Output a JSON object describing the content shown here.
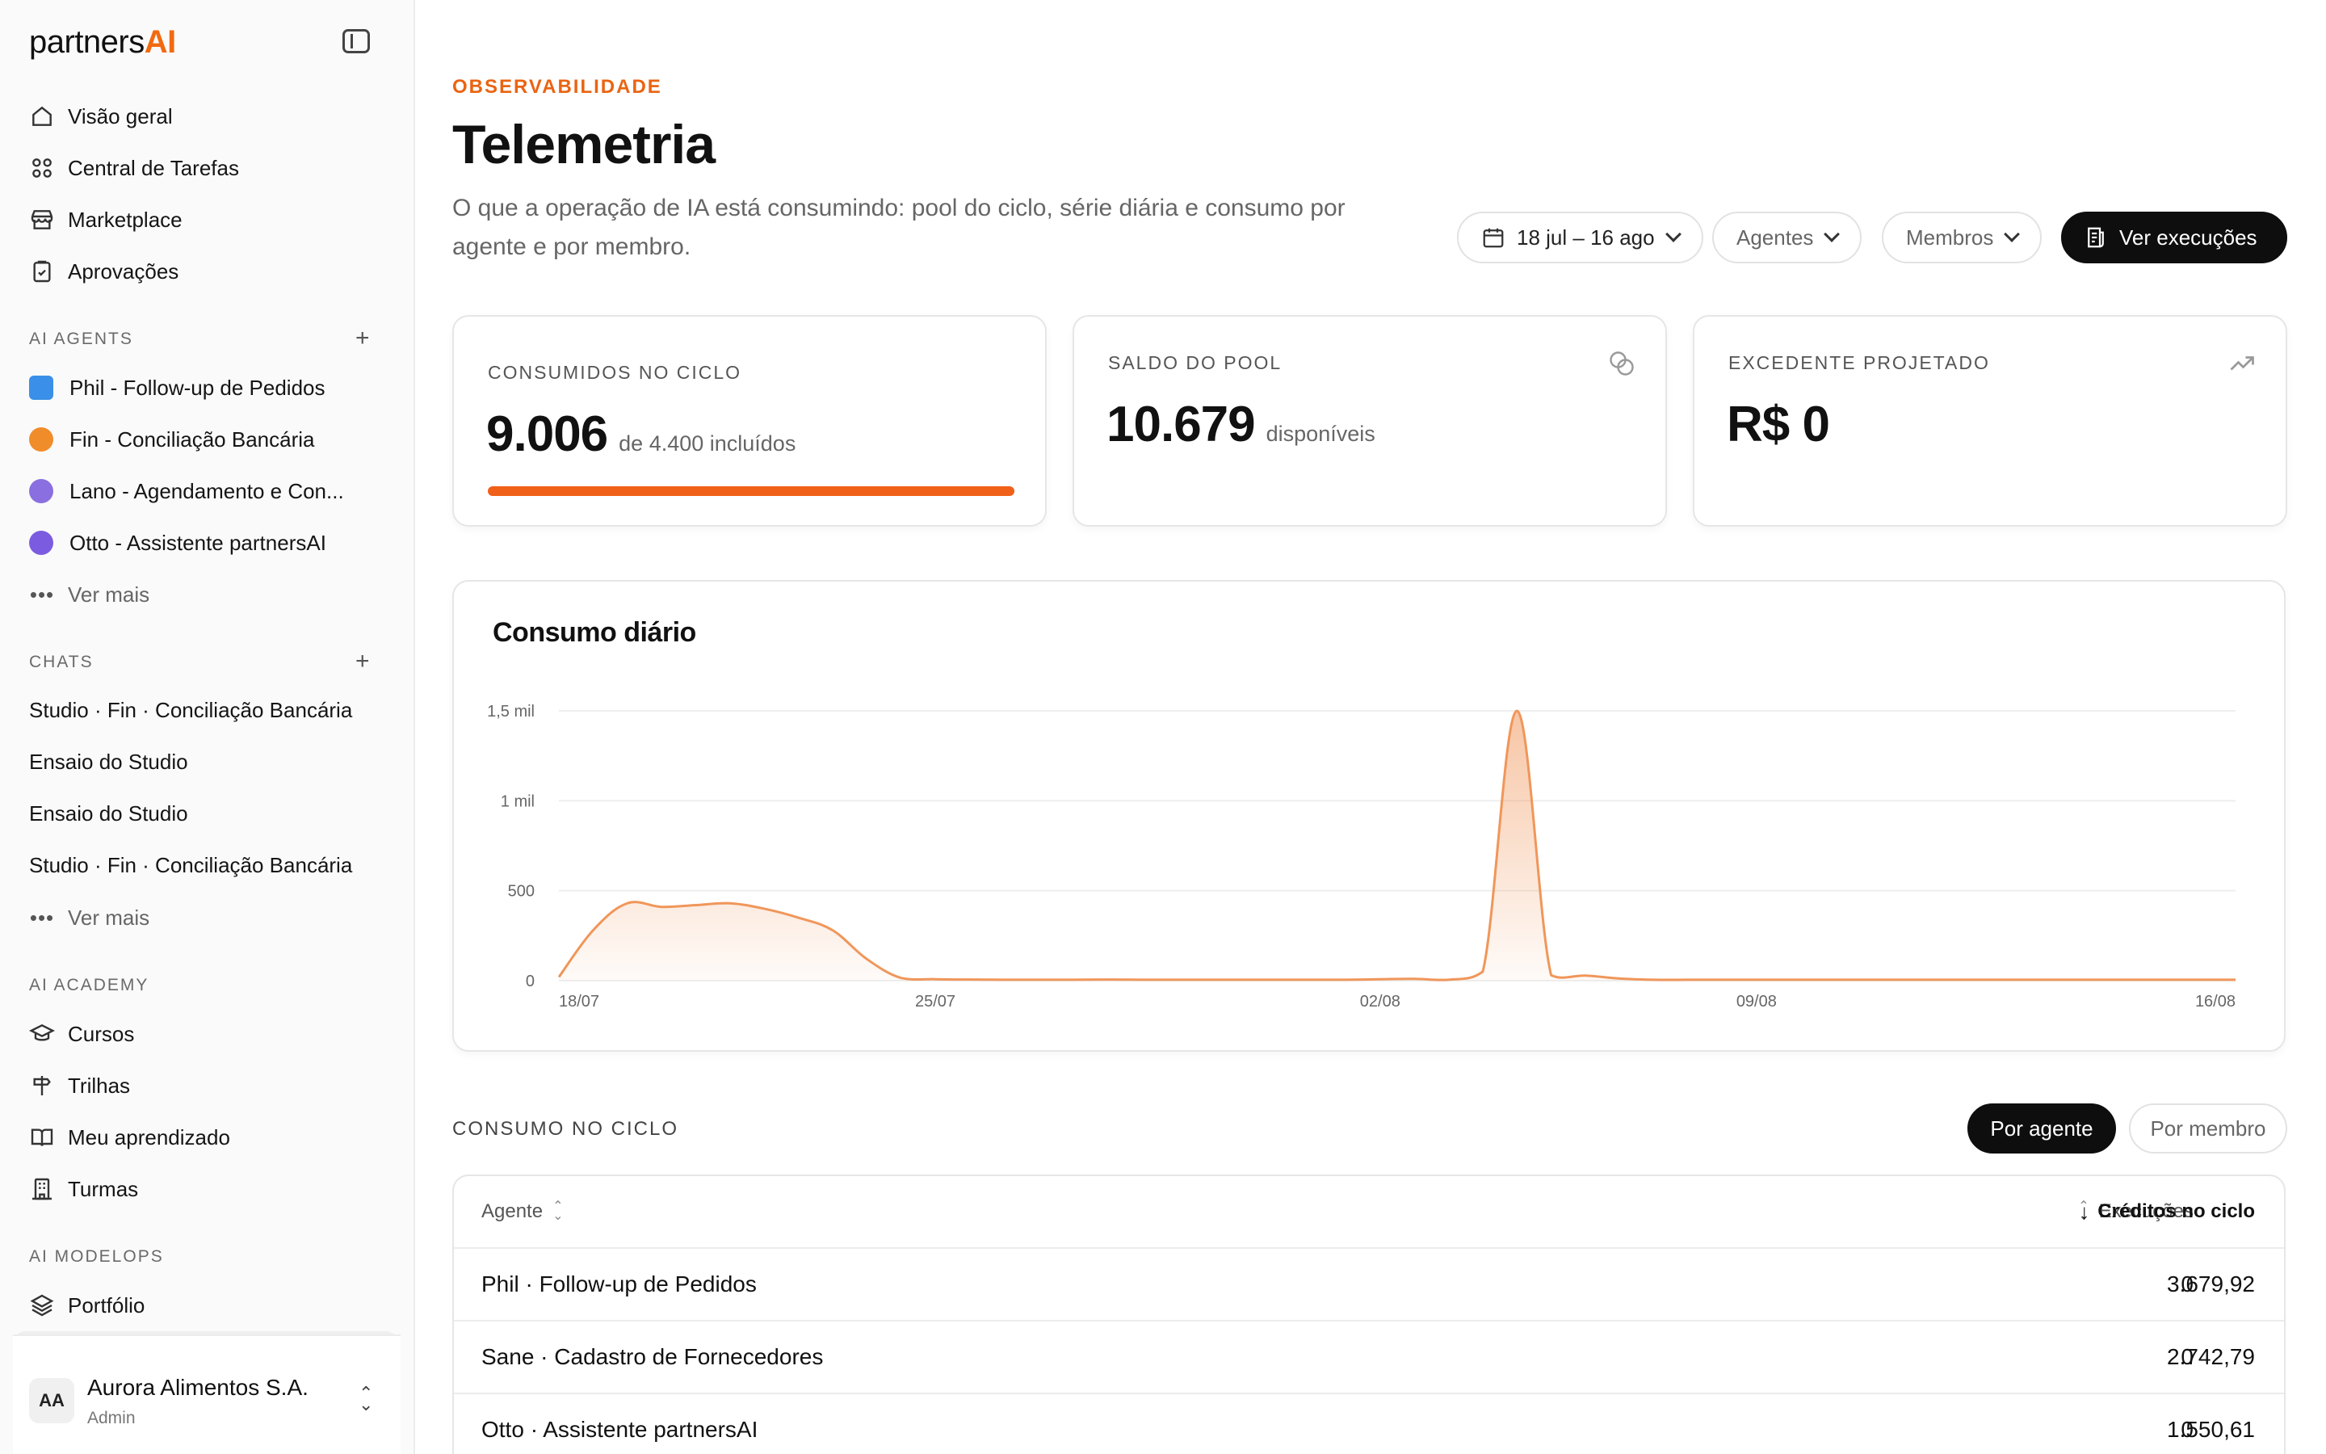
{
  "brand": {
    "name_prefix": "partners",
    "name_suffix": "AI"
  },
  "colors": {
    "accent": "#f26a10",
    "primary_dark": "#0e0e0e",
    "chart_line": "#f0965a"
  },
  "sidebar": {
    "main_nav": [
      {
        "label": "Visão geral",
        "icon": "home-icon"
      },
      {
        "label": "Central de Tarefas",
        "icon": "grid-icon"
      },
      {
        "label": "Marketplace",
        "icon": "store-icon"
      },
      {
        "label": "Aprovações",
        "icon": "clipboard-check-icon"
      }
    ],
    "agents_section": {
      "label": "AI AGENTS",
      "items": [
        {
          "label": "Phil - Follow-up de Pedidos",
          "color": "#3a8fe8"
        },
        {
          "label": "Fin - Conciliação Bancária",
          "color": "#f08c2a"
        },
        {
          "label": "Lano - Agendamento e Con...",
          "color": "#8a6fe0"
        },
        {
          "label": "Otto - Assistente partnersAI",
          "color": "#7b5ce0"
        }
      ],
      "more": "Ver mais"
    },
    "chats_section": {
      "label": "CHATS",
      "items": [
        "Studio · Fin · Conciliação Bancária",
        "Ensaio do Studio",
        "Ensaio do Studio",
        "Studio · Fin · Conciliação Bancária"
      ],
      "more": "Ver mais"
    },
    "academy_section": {
      "label": "AI ACADEMY",
      "items": [
        {
          "label": "Cursos",
          "icon": "graduation-cap-icon"
        },
        {
          "label": "Trilhas",
          "icon": "signpost-icon"
        },
        {
          "label": "Meu aprendizado",
          "icon": "book-open-icon"
        },
        {
          "label": "Turmas",
          "icon": "building-icon"
        }
      ]
    },
    "modelops_section": {
      "label": "AI MODELOPS",
      "items": [
        {
          "label": "Portfólio",
          "icon": "layers-icon"
        }
      ]
    },
    "org": {
      "initials": "AA",
      "name": "Aurora Alimentos S.A.",
      "role": "Admin"
    }
  },
  "header": {
    "eyebrow": "OBSERVABILIDADE",
    "title": "Telemetria",
    "description": "O que a operação de IA está consumindo: pool do ciclo, série diária e consumo por agente e por membro.",
    "filters": {
      "date_range": "18 jul – 16 ago",
      "agents": "Agentes",
      "members": "Membros",
      "executions_button": "Ver execuções"
    }
  },
  "kpis": {
    "consumed": {
      "label": "CONSUMIDOS NO CICLO",
      "value": "9.006",
      "sub": "de 4.400 incluídos",
      "progress": 1.0
    },
    "pool": {
      "label": "SALDO DO POOL",
      "value": "10.679",
      "sub": "disponíveis",
      "icon": "coins-icon"
    },
    "overage": {
      "label": "EXCEDENTE PROJETADO",
      "value": "R$ 0",
      "icon": "trending-up-icon"
    }
  },
  "chart_data": {
    "type": "area",
    "title": "Consumo diário",
    "y_ticks": [
      "0",
      "500",
      "1 mil",
      "1,5 mil"
    ],
    "ylim": [
      0,
      1500
    ],
    "x_ticks": [
      "18/07",
      "25/07",
      "02/08",
      "09/08",
      "16/08"
    ],
    "grid": true,
    "legend": "none",
    "series": [
      {
        "values": [
          20,
          280,
          430,
          410,
          420,
          430,
          400,
          350,
          280,
          120,
          15,
          8,
          6,
          5,
          5,
          5,
          6,
          5,
          5,
          5,
          5,
          5,
          5,
          5,
          8,
          10,
          5,
          50,
          1500,
          30,
          28,
          12,
          5,
          5,
          5,
          5,
          5,
          5,
          5,
          5,
          5,
          5,
          5,
          5,
          5,
          5,
          5,
          5,
          5,
          5
        ]
      }
    ]
  },
  "consumption": {
    "title": "CONSUMO NO CICLO",
    "toggle": {
      "by_agent": "Por agente",
      "by_member": "Por membro"
    },
    "columns": {
      "agent": "Agente",
      "executions": "Execuções",
      "credits": "Créditos no ciclo"
    },
    "rows": [
      {
        "agent": "Phil · Follow-up de Pedidos",
        "executions": "0",
        "credits": "3.679,92"
      },
      {
        "agent": "Sane · Cadastro de Fornecedores",
        "executions": "0",
        "credits": "2.742,79"
      },
      {
        "agent": "Otto · Assistente partnersAI",
        "executions": "0",
        "credits": "1.550,61"
      }
    ]
  }
}
